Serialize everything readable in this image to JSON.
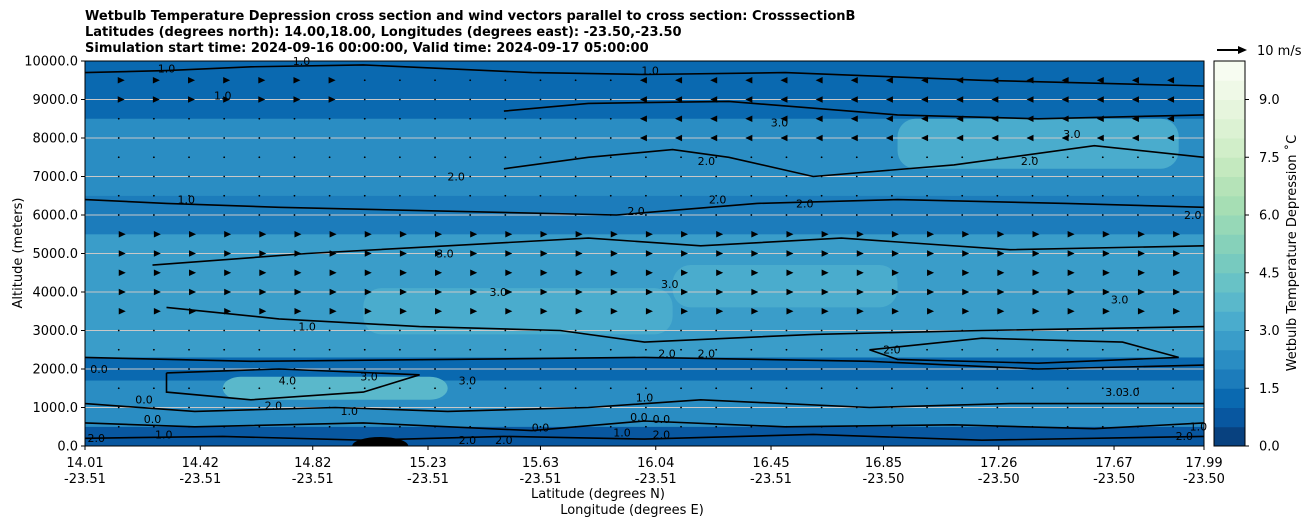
{
  "chart_data": {
    "type": "heatmap",
    "title_lines": [
      "Wetbulb Temperature Depression cross section and wind vectors parallel to cross section: CrosssectionB",
      "Latitudes (degrees north): 14.00,18.00, Longitudes (degrees east): -23.50,-23.50",
      "Simulation start time: 2024-09-16 00:00:00, Valid time: 2024-09-17 05:00:00"
    ],
    "ylabel": "Altitude (meters)",
    "xlabel_lat": "Latitude (degrees N)",
    "xlabel_lon": "Longitude (degrees E)",
    "ylim": [
      0,
      10000
    ],
    "yticks": [
      "0.0",
      "1000.0",
      "2000.0",
      "3000.0",
      "4000.0",
      "5000.0",
      "6000.0",
      "7000.0",
      "8000.0",
      "9000.0",
      "10000.0"
    ],
    "xlim": [
      14.01,
      17.99
    ],
    "xticks": [
      {
        "lat": 14.01,
        "lat_label": "14.01",
        "lon_label": "-23.51"
      },
      {
        "lat": 14.42,
        "lat_label": "14.42",
        "lon_label": "-23.51"
      },
      {
        "lat": 14.82,
        "lat_label": "14.82",
        "lon_label": "-23.51"
      },
      {
        "lat": 15.23,
        "lat_label": "15.23",
        "lon_label": "-23.51"
      },
      {
        "lat": 15.63,
        "lat_label": "15.63",
        "lon_label": "-23.51"
      },
      {
        "lat": 16.04,
        "lat_label": "16.04",
        "lon_label": "-23.51"
      },
      {
        "lat": 16.45,
        "lat_label": "16.45",
        "lon_label": "-23.51"
      },
      {
        "lat": 16.85,
        "lat_label": "16.85",
        "lon_label": "-23.50"
      },
      {
        "lat": 17.26,
        "lat_label": "17.26",
        "lon_label": "-23.50"
      },
      {
        "lat": 17.67,
        "lat_label": "17.67",
        "lon_label": "-23.50"
      },
      {
        "lat": 17.99,
        "lat_label": "17.99",
        "lon_label": "-23.50"
      }
    ],
    "grid": "horizontal",
    "colorbar": {
      "label": "Wetbulb Temperature Depression ˚C",
      "range": [
        0,
        10
      ],
      "ticks": [
        "0.0",
        "1.5",
        "3.0",
        "4.5",
        "6.0",
        "7.5",
        "9.0"
      ],
      "colors": [
        "#08417f",
        "#0857a0",
        "#0a69b0",
        "#1c7cbb",
        "#2a8dc3",
        "#3a9dc9",
        "#4aaccd",
        "#5ab8cb",
        "#68c2c6",
        "#77cabf",
        "#86d1ba",
        "#96d8b7",
        "#a6deb4",
        "#b5e3b8",
        "#c4e9bf",
        "#d1eec9",
        "#dcf2d3",
        "#e6f5dd",
        "#eff9e7",
        "#f7fcf1"
      ]
    },
    "wind_key": "10 m/s",
    "contour_levels": [
      {
        "value": 0.0,
        "label": "0.0"
      },
      {
        "value": 1.0,
        "label": "1.0"
      },
      {
        "value": 2.0,
        "label": "2.0"
      },
      {
        "value": 3.0,
        "label": "3.0"
      },
      {
        "value": 4.0,
        "label": "4.0"
      }
    ],
    "field_bands": [
      {
        "alt_range": [
          0,
          500
        ],
        "value": 0.8
      },
      {
        "alt_range": [
          500,
          1700
        ],
        "value": 2.4
      },
      {
        "alt_range": [
          1700,
          2300
        ],
        "value": 1.2
      },
      {
        "alt_range": [
          2300,
          5500
        ],
        "value": 2.6
      },
      {
        "alt_range": [
          5500,
          6500
        ],
        "value": 1.5
      },
      {
        "alt_range": [
          6500,
          8500
        ],
        "value": 2.3
      },
      {
        "alt_range": [
          8500,
          10000
        ],
        "value": 1.2
      }
    ],
    "contour_labels": [
      {
        "lat": 14.3,
        "alt": 9700,
        "text": "1.0"
      },
      {
        "lat": 14.5,
        "alt": 9000,
        "text": "1.0"
      },
      {
        "lat": 14.78,
        "alt": 9900,
        "text": "1.0"
      },
      {
        "lat": 16.02,
        "alt": 9650,
        "text": "1.0"
      },
      {
        "lat": 16.48,
        "alt": 8300,
        "text": "3.0"
      },
      {
        "lat": 17.52,
        "alt": 8000,
        "text": "3.0"
      },
      {
        "lat": 17.37,
        "alt": 7300,
        "text": "2.0"
      },
      {
        "lat": 16.22,
        "alt": 7300,
        "text": "2.0"
      },
      {
        "lat": 15.33,
        "alt": 6900,
        "text": "2.0"
      },
      {
        "lat": 14.37,
        "alt": 6300,
        "text": "1.0"
      },
      {
        "lat": 15.97,
        "alt": 6000,
        "text": "2.0"
      },
      {
        "lat": 16.26,
        "alt": 6300,
        "text": "2.0"
      },
      {
        "lat": 16.57,
        "alt": 6200,
        "text": "2.0"
      },
      {
        "lat": 17.95,
        "alt": 5900,
        "text": "2.0"
      },
      {
        "lat": 15.29,
        "alt": 4900,
        "text": "3.0"
      },
      {
        "lat": 15.48,
        "alt": 3900,
        "text": "3.0"
      },
      {
        "lat": 16.09,
        "alt": 4100,
        "text": "3.0"
      },
      {
        "lat": 17.69,
        "alt": 3700,
        "text": "3.0"
      },
      {
        "lat": 14.8,
        "alt": 3000,
        "text": "1.0"
      },
      {
        "lat": 16.08,
        "alt": 2300,
        "text": "2.0"
      },
      {
        "lat": 16.22,
        "alt": 2300,
        "text": "2.0"
      },
      {
        "lat": 16.88,
        "alt": 2400,
        "text": "2.0"
      },
      {
        "lat": 14.06,
        "alt": 1900,
        "text": "0.0"
      },
      {
        "lat": 14.73,
        "alt": 1600,
        "text": "4.0"
      },
      {
        "lat": 15.02,
        "alt": 1700,
        "text": "3.0"
      },
      {
        "lat": 15.37,
        "alt": 1600,
        "text": "3.0"
      },
      {
        "lat": 14.68,
        "alt": 950,
        "text": "2.0"
      },
      {
        "lat": 14.22,
        "alt": 1100,
        "text": "0.0"
      },
      {
        "lat": 14.95,
        "alt": 800,
        "text": "1.0"
      },
      {
        "lat": 14.25,
        "alt": 600,
        "text": "0.0"
      },
      {
        "lat": 14.29,
        "alt": 200,
        "text": "1.0"
      },
      {
        "lat": 14.05,
        "alt": 100,
        "text": "2.0"
      },
      {
        "lat": 15.37,
        "alt": 50,
        "text": "2.0"
      },
      {
        "lat": 15.5,
        "alt": 50,
        "text": "2.0"
      },
      {
        "lat": 15.63,
        "alt": 380,
        "text": "0.0"
      },
      {
        "lat": 16.0,
        "alt": 1150,
        "text": "1.0"
      },
      {
        "lat": 15.98,
        "alt": 650,
        "text": "0.0"
      },
      {
        "lat": 16.06,
        "alt": 600,
        "text": "0.0"
      },
      {
        "lat": 15.92,
        "alt": 250,
        "text": "1.0"
      },
      {
        "lat": 16.06,
        "alt": 200,
        "text": "2.0"
      },
      {
        "lat": 17.67,
        "alt": 1300,
        "text": "3.0"
      },
      {
        "lat": 17.73,
        "alt": 1300,
        "text": "3.0"
      },
      {
        "lat": 17.97,
        "alt": 400,
        "text": "1.0"
      },
      {
        "lat": 17.92,
        "alt": 150,
        "text": "2.0"
      }
    ]
  }
}
